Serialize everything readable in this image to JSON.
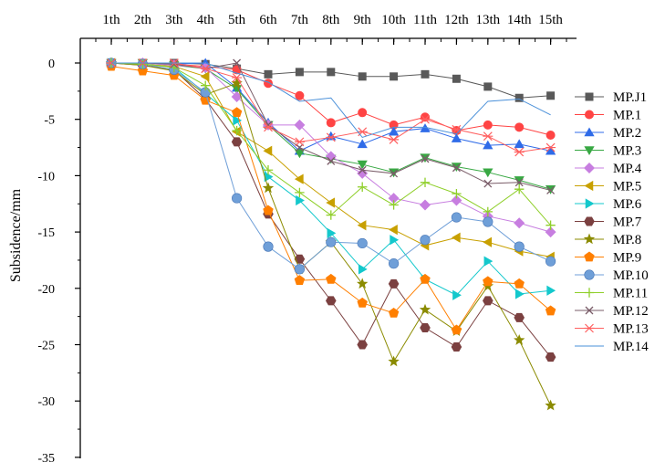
{
  "chart_data": {
    "type": "line",
    "title": "",
    "xlabel": "",
    "ylabel": "Subsidence/mm",
    "categories": [
      "1th",
      "2th",
      "3th",
      "4th",
      "5th",
      "6th",
      "7th",
      "8th",
      "9th",
      "10th",
      "11th",
      "12th",
      "13th",
      "14th",
      "15th"
    ],
    "ylim": [
      -35,
      2
    ],
    "yticks": [
      0,
      -5,
      -10,
      -15,
      -20,
      -25,
      -30,
      -35
    ],
    "x_axis_position": "top",
    "grid": false,
    "legend_position": "right",
    "series": [
      {
        "name": "MP.J1",
        "color": "#595959",
        "marker": "square",
        "values": [
          0,
          0,
          0,
          -0.1,
          -0.5,
          -1.0,
          -0.8,
          -0.8,
          -1.2,
          -1.2,
          -1.0,
          -1.4,
          -2.1,
          -3.1,
          -2.9
        ]
      },
      {
        "name": "MP.1",
        "color": "#ff4444",
        "marker": "circle",
        "values": [
          0,
          0,
          -0.1,
          -0.3,
          -0.6,
          -1.8,
          -2.9,
          -5.3,
          -4.4,
          -5.5,
          -4.8,
          -6.0,
          -5.5,
          -5.7,
          -6.4
        ]
      },
      {
        "name": "MP.2",
        "color": "#2f6be8",
        "marker": "triangle-up",
        "values": [
          0,
          0,
          -0.1,
          0,
          -2.2,
          -5.3,
          -7.8,
          -6.5,
          -7.2,
          -6.1,
          -5.8,
          -6.7,
          -7.3,
          -7.2,
          -7.8
        ]
      },
      {
        "name": "MP.3",
        "color": "#38a843",
        "marker": "triangle-down",
        "values": [
          0,
          0,
          -0.2,
          -0.5,
          -2.3,
          -5.5,
          -8.0,
          -8.5,
          -9.0,
          -9.7,
          -8.4,
          -9.2,
          -9.7,
          -10.4,
          -11.2
        ]
      },
      {
        "name": "MP.4",
        "color": "#c77ee0",
        "marker": "diamond",
        "values": [
          0,
          0,
          -0.2,
          -0.4,
          -3.0,
          -5.5,
          -5.5,
          -8.3,
          -9.8,
          -12.0,
          -12.6,
          -12.2,
          -13.6,
          -14.2,
          -15.0
        ]
      },
      {
        "name": "MP.5",
        "color": "#c8a000",
        "marker": "triangle-left",
        "values": [
          0,
          -0.1,
          -0.3,
          -1.2,
          -6.1,
          -7.8,
          -10.3,
          -12.4,
          -14.4,
          -14.8,
          -16.2,
          -15.5,
          -15.9,
          -16.7,
          -17.2
        ]
      },
      {
        "name": "MP.6",
        "color": "#13c8cc",
        "marker": "triangle-right",
        "values": [
          0,
          -0.1,
          -0.4,
          -2.7,
          -5.1,
          -10.1,
          -12.2,
          -15.1,
          -18.3,
          -15.7,
          -19.2,
          -20.6,
          -17.6,
          -20.5,
          -20.2
        ]
      },
      {
        "name": "MP.7",
        "color": "#7b4040",
        "marker": "hexagon",
        "values": [
          0,
          -0.2,
          -0.6,
          -3.2,
          -7.0,
          -13.4,
          -17.4,
          -21.1,
          -25.0,
          -19.6,
          -23.5,
          -25.2,
          -21.1,
          -22.6,
          -26.1
        ]
      },
      {
        "name": "MP.8",
        "color": "#8b8b00",
        "marker": "star",
        "values": [
          0,
          -0.2,
          -0.7,
          -2.8,
          -1.8,
          -11.1,
          -18.3,
          -15.9,
          -19.6,
          -26.5,
          -21.9,
          -23.8,
          -19.8,
          -24.6,
          -30.4
        ]
      },
      {
        "name": "MP.9",
        "color": "#ff7f00",
        "marker": "pentagon",
        "values": [
          -0.3,
          -0.7,
          -1.1,
          -3.3,
          -4.4,
          -13.1,
          -19.3,
          -19.2,
          -21.3,
          -22.2,
          -19.2,
          -23.7,
          -19.4,
          -19.6,
          -22.0
        ]
      },
      {
        "name": "MP.10",
        "color": "#6f9fd8",
        "marker": "sphere",
        "values": [
          0,
          -0.1,
          -0.6,
          -2.6,
          -12.0,
          -16.3,
          -18.3,
          -15.9,
          -16.0,
          -17.8,
          -15.7,
          -13.7,
          -14.1,
          -16.3,
          -17.6
        ]
      },
      {
        "name": "MP.11",
        "color": "#8fcf2a",
        "marker": "plus",
        "values": [
          0,
          -0.1,
          -0.4,
          -2.0,
          -6.0,
          -9.5,
          -11.5,
          -13.5,
          -11.0,
          -12.6,
          -10.6,
          -11.6,
          -13.2,
          -11.2,
          -14.4
        ]
      },
      {
        "name": "MP.12",
        "color": "#7a5c68",
        "marker": "cross",
        "values": [
          0,
          0,
          -0.1,
          -0.5,
          0,
          -5.5,
          -7.5,
          -8.7,
          -9.5,
          -9.8,
          -8.5,
          -9.3,
          -10.7,
          -10.6,
          -11.3
        ]
      },
      {
        "name": "MP.13",
        "color": "#ff6060",
        "marker": "asterisk",
        "values": [
          0,
          0,
          0,
          -0.5,
          -1.3,
          -5.7,
          -7.0,
          -6.6,
          -6.1,
          -6.8,
          -5.0,
          -5.9,
          -6.5,
          -7.9,
          -7.5
        ]
      },
      {
        "name": "MP.14",
        "color": "#4a90d9",
        "marker": "none",
        "values": [
          0,
          0,
          0,
          0,
          -0.9,
          -1.7,
          -3.4,
          -3.1,
          -6.6,
          -5.7,
          -5.7,
          -6.3,
          -3.4,
          -3.2,
          -4.6
        ]
      }
    ]
  }
}
